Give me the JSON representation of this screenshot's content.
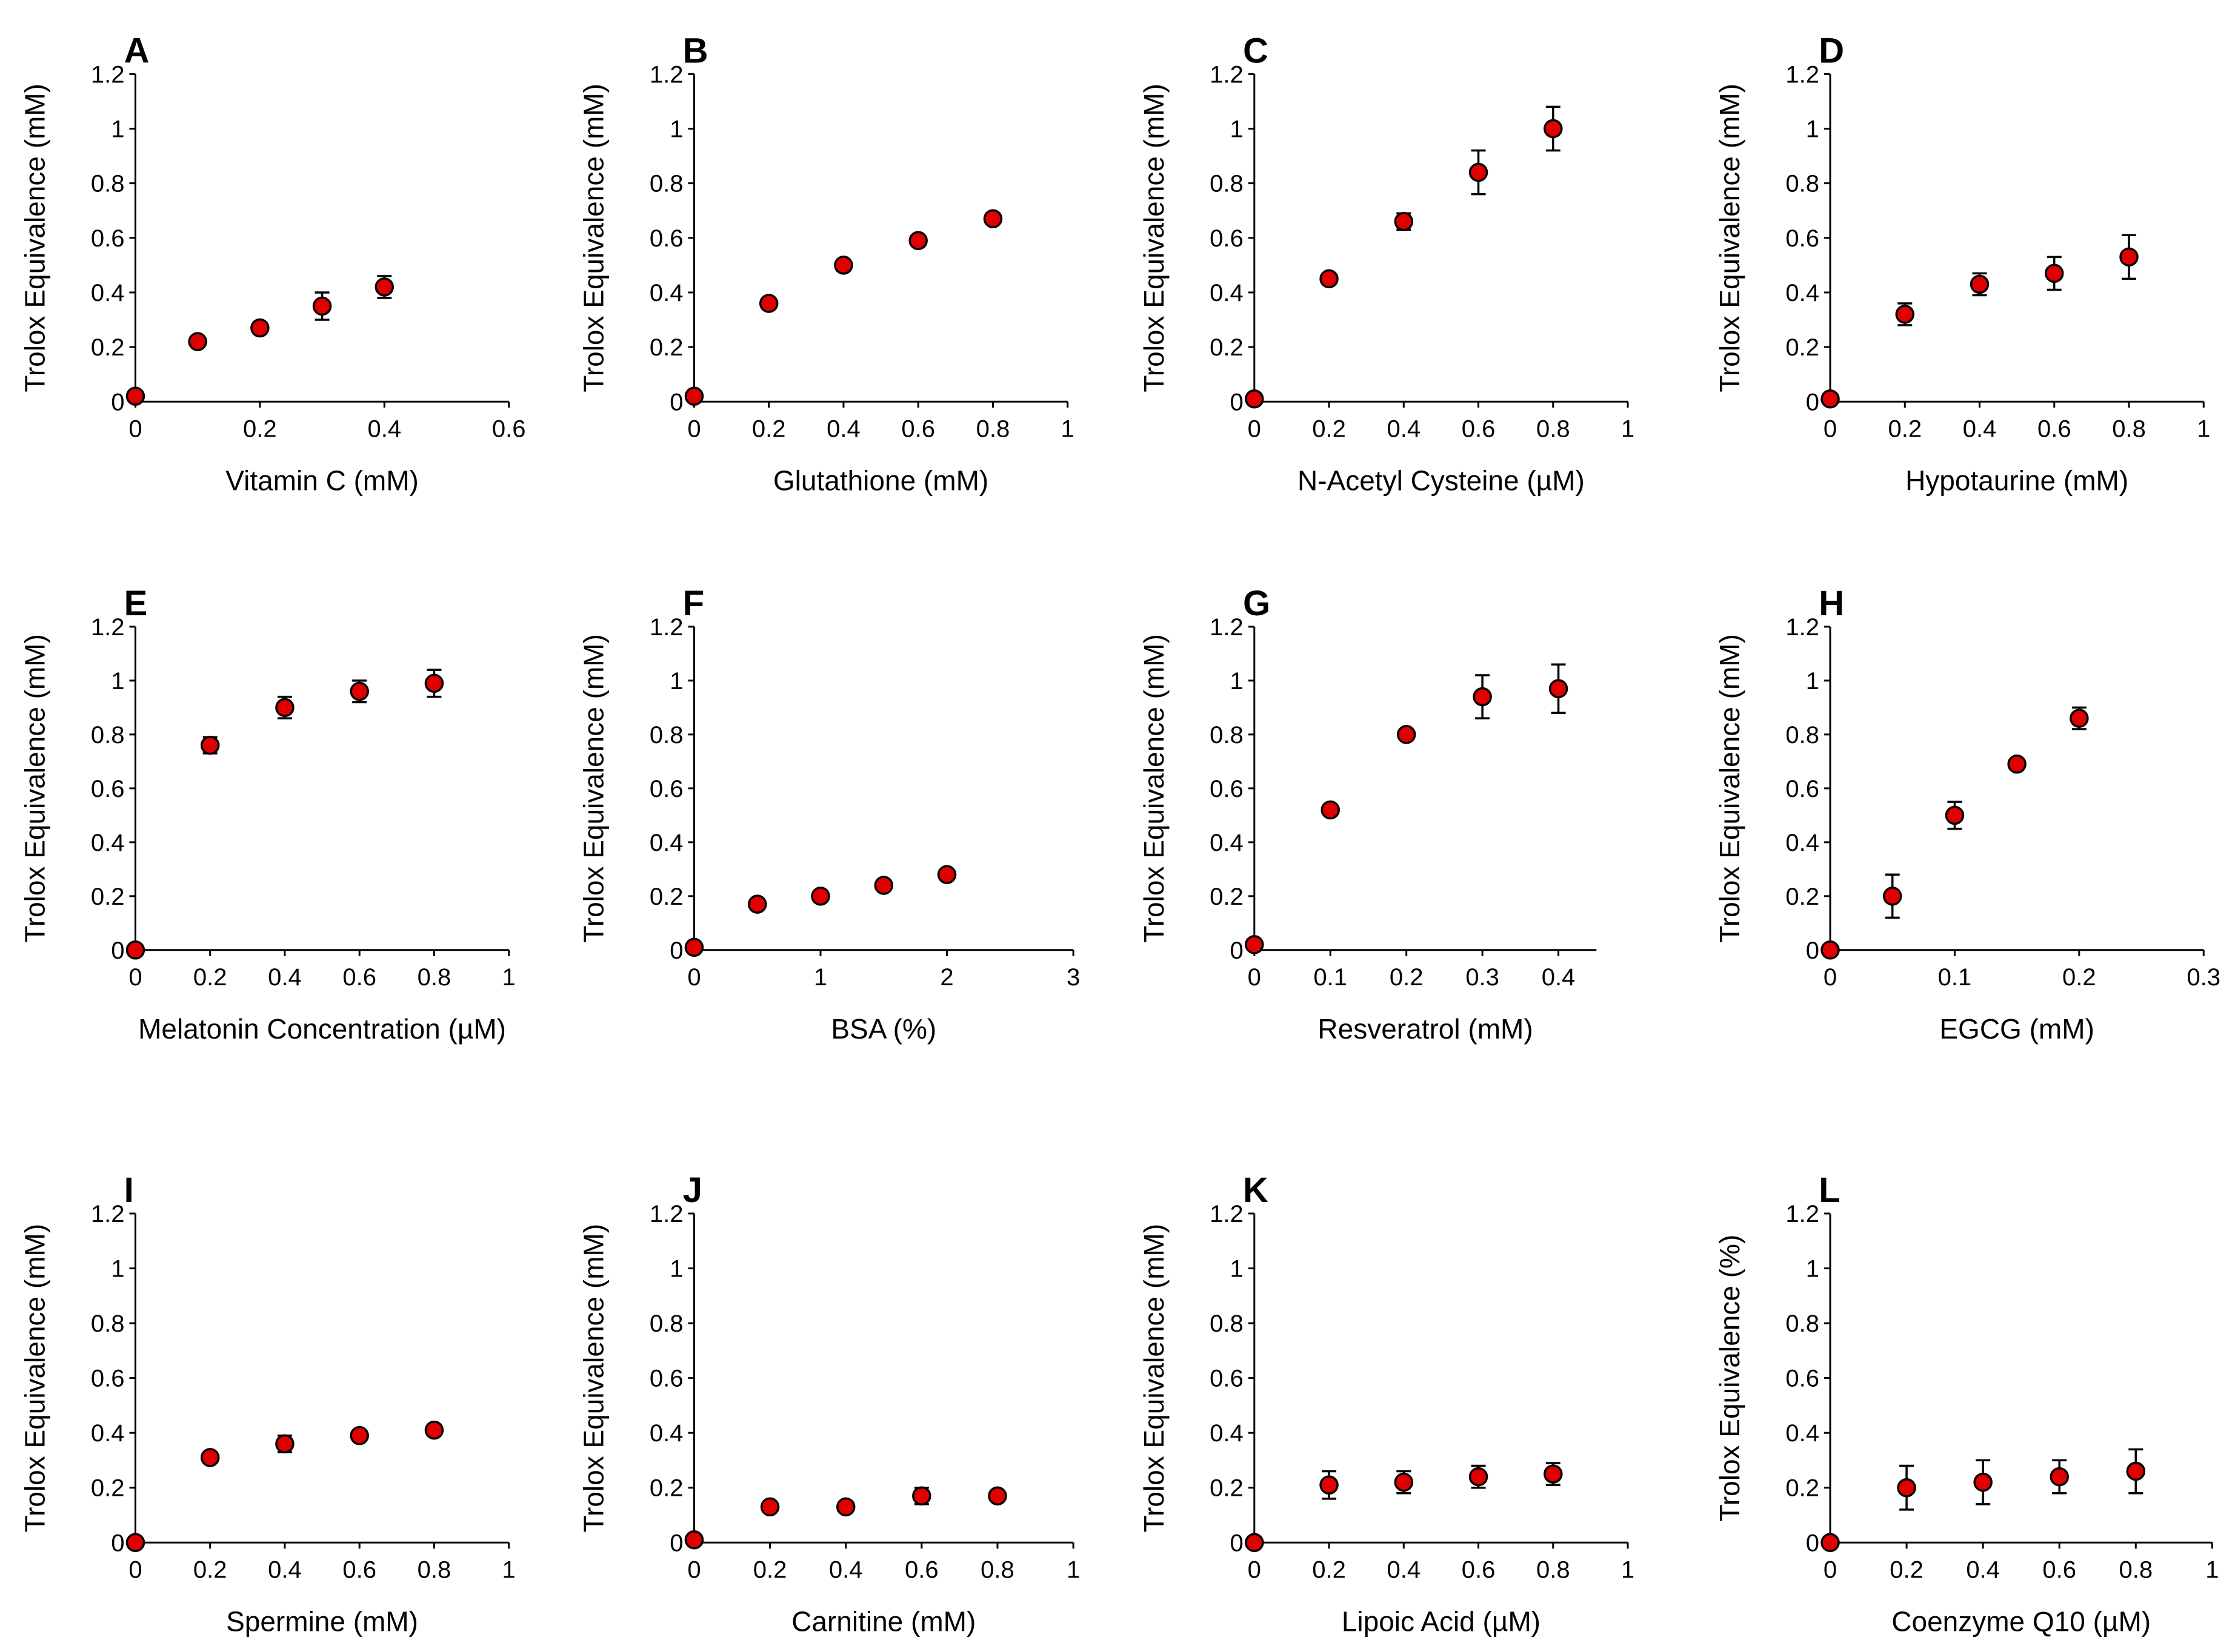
{
  "figure": {
    "marker_color": "#e00000",
    "marker_edge_color": "#000000",
    "axis_color": "#000000",
    "background": "#ffffff"
  },
  "chart_data": [
    {
      "panel": "A",
      "type": "scatter",
      "xlabel": "Vitamin C (mM)",
      "ylabel": "Trolox Equivalence (mM)",
      "xlim": [
        0,
        0.6
      ],
      "ylim": [
        0,
        1.2
      ],
      "x_ticks": [
        "0",
        "0.2",
        "0.4",
        "0.6"
      ],
      "y_ticks": [
        "0",
        "0.2",
        "0.4",
        "0.6",
        "0.8",
        "1",
        "1.2"
      ],
      "x": [
        0,
        0.1,
        0.2,
        0.3,
        0.4
      ],
      "y": [
        0.02,
        0.22,
        0.27,
        0.35,
        0.42
      ],
      "err": [
        0,
        0,
        0,
        0.05,
        0.04
      ]
    },
    {
      "panel": "B",
      "type": "scatter",
      "xlabel": "Glutathione (mM)",
      "ylabel": "Trolox Equivalence (mM)",
      "xlim": [
        0,
        1
      ],
      "ylim": [
        0,
        1.2
      ],
      "x_ticks": [
        "0",
        "0.2",
        "0.4",
        "0.6",
        "0.8",
        "1"
      ],
      "y_ticks": [
        "0",
        "0.2",
        "0.4",
        "0.6",
        "0.8",
        "1",
        "1.2"
      ],
      "x": [
        0,
        0.2,
        0.4,
        0.6,
        0.8
      ],
      "y": [
        0.02,
        0.36,
        0.5,
        0.59,
        0.67
      ],
      "err": [
        0,
        0.02,
        0.02,
        0.02,
        0.02
      ]
    },
    {
      "panel": "C",
      "type": "scatter",
      "xlabel": "N-Acetyl Cysteine (µM)",
      "ylabel": "Trolox Equivalence (mM)",
      "xlim": [
        0,
        1
      ],
      "ylim": [
        0,
        1.2
      ],
      "x_ticks": [
        "0",
        "0.2",
        "0.4",
        "0.6",
        "0.8",
        "1"
      ],
      "y_ticks": [
        "0",
        "0.2",
        "0.4",
        "0.6",
        "0.8",
        "1",
        "1.2"
      ],
      "x": [
        0,
        0.2,
        0.4,
        0.6,
        0.8
      ],
      "y": [
        0.01,
        0.45,
        0.66,
        0.84,
        1.0
      ],
      "err": [
        0,
        0,
        0.03,
        0.08,
        0.08
      ]
    },
    {
      "panel": "D",
      "type": "scatter",
      "xlabel": "Hypotaurine (mM)",
      "ylabel": "Trolox Equivalence (mM)",
      "xlim": [
        0,
        1
      ],
      "ylim": [
        0,
        1.2
      ],
      "x_ticks": [
        "0",
        "0.2",
        "0.4",
        "0.6",
        "0.8",
        "1"
      ],
      "y_ticks": [
        "0",
        "0.2",
        "0.4",
        "0.6",
        "0.8",
        "1",
        "1.2"
      ],
      "x": [
        0,
        0.2,
        0.4,
        0.6,
        0.8
      ],
      "y": [
        0.01,
        0.32,
        0.43,
        0.47,
        0.53
      ],
      "err": [
        0,
        0.04,
        0.04,
        0.06,
        0.08
      ]
    },
    {
      "panel": "E",
      "type": "scatter",
      "xlabel": "Melatonin Concentration (µM)",
      "ylabel": "Trolox Equivalence (mM)",
      "xlim": [
        0,
        1
      ],
      "ylim": [
        0,
        1.2
      ],
      "x_ticks": [
        "0",
        "0.2",
        "0.4",
        "0.6",
        "0.8",
        "1"
      ],
      "y_ticks": [
        "0",
        "0.2",
        "0.4",
        "0.6",
        "0.8",
        "1",
        "1.2"
      ],
      "x": [
        0,
        0.2,
        0.4,
        0.6,
        0.8
      ],
      "y": [
        0,
        0.76,
        0.9,
        0.96,
        0.99
      ],
      "err": [
        0,
        0.03,
        0.04,
        0.04,
        0.05
      ]
    },
    {
      "panel": "F",
      "type": "scatter",
      "xlabel": "BSA (%)",
      "ylabel": "Trolox Equivalence (mM)",
      "xlim": [
        0,
        3
      ],
      "ylim": [
        0,
        1.2
      ],
      "x_ticks": [
        "0",
        "1",
        "2",
        "3"
      ],
      "y_ticks": [
        "0",
        "0.2",
        "0.4",
        "0.6",
        "0.8",
        "1",
        "1.2"
      ],
      "x": [
        0,
        0.5,
        1,
        1.5,
        2
      ],
      "y": [
        0.01,
        0.17,
        0.2,
        0.24,
        0.28
      ],
      "err": [
        0,
        0.01,
        0.02,
        0.01,
        0.01
      ]
    },
    {
      "panel": "G",
      "type": "scatter",
      "xlabel": "Resveratrol (mM)",
      "ylabel": "Trolox Equivalence (mM)",
      "xlim": [
        0,
        0.45
      ],
      "ylim": [
        0,
        1.2
      ],
      "x_ticks": [
        "0",
        "0.1",
        "0.2",
        "0.3",
        "0.4"
      ],
      "y_ticks": [
        "0",
        "0.2",
        "0.4",
        "0.6",
        "0.8",
        "1",
        "1.2"
      ],
      "x": [
        0,
        0.1,
        0.2,
        0.3,
        0.4
      ],
      "y": [
        0.02,
        0.52,
        0.8,
        0.94,
        0.97
      ],
      "err": [
        0,
        0.02,
        0,
        0.08,
        0.09
      ]
    },
    {
      "panel": "H",
      "type": "scatter",
      "xlabel": "EGCG (mM)",
      "ylabel": "Trolox Equivalence (mM)",
      "xlim": [
        0,
        0.3
      ],
      "ylim": [
        0,
        1.2
      ],
      "x_ticks": [
        "0",
        "0.1",
        "0.2",
        "0.3"
      ],
      "y_ticks": [
        "0",
        "0.2",
        "0.4",
        "0.6",
        "0.8",
        "1",
        "1.2"
      ],
      "x": [
        0,
        0.05,
        0.1,
        0.15,
        0.2
      ],
      "y": [
        0,
        0.2,
        0.5,
        0.69,
        0.86
      ],
      "err": [
        0,
        0.08,
        0.05,
        0,
        0.04
      ]
    },
    {
      "panel": "I",
      "type": "scatter",
      "xlabel": "Spermine (mM)",
      "ylabel": "Trolox Equivalence (mM)",
      "xlim": [
        0,
        1
      ],
      "ylim": [
        0,
        1.2
      ],
      "x_ticks": [
        "0",
        "0.2",
        "0.4",
        "0.6",
        "0.8",
        "1"
      ],
      "y_ticks": [
        "0",
        "0.2",
        "0.4",
        "0.6",
        "0.8",
        "1",
        "1.2"
      ],
      "x": [
        0,
        0.2,
        0.4,
        0.6,
        0.8
      ],
      "y": [
        0,
        0.31,
        0.36,
        0.39,
        0.41
      ],
      "err": [
        0,
        0.02,
        0.03,
        0.01,
        0.02
      ]
    },
    {
      "panel": "J",
      "type": "scatter",
      "xlabel": "Carnitine (mM)",
      "ylabel": "Trolox Equivalence (mM)",
      "xlim": [
        0,
        1
      ],
      "ylim": [
        0,
        1.2
      ],
      "x_ticks": [
        "0",
        "0.2",
        "0.4",
        "0.6",
        "0.8",
        "1"
      ],
      "y_ticks": [
        "0",
        "0.2",
        "0.4",
        "0.6",
        "0.8",
        "1",
        "1.2"
      ],
      "x": [
        0,
        0.2,
        0.4,
        0.6,
        0.8
      ],
      "y": [
        0.01,
        0.13,
        0.13,
        0.17,
        0.17
      ],
      "err": [
        0,
        0.01,
        0.01,
        0.03,
        0.01
      ]
    },
    {
      "panel": "K",
      "type": "scatter",
      "xlabel": "Lipoic Acid (µM)",
      "ylabel": "Trolox Equivalence (mM)",
      "xlim": [
        0,
        1
      ],
      "ylim": [
        0,
        1.2
      ],
      "x_ticks": [
        "0",
        "0.2",
        "0.4",
        "0.6",
        "0.8",
        "1"
      ],
      "y_ticks": [
        "0",
        "0.2",
        "0.4",
        "0.6",
        "0.8",
        "1",
        "1.2"
      ],
      "x": [
        0,
        0.2,
        0.4,
        0.6,
        0.8
      ],
      "y": [
        0,
        0.21,
        0.22,
        0.24,
        0.25
      ],
      "err": [
        0,
        0.05,
        0.04,
        0.04,
        0.04
      ]
    },
    {
      "panel": "L",
      "type": "scatter",
      "xlabel": "Coenzyme Q10 (µM)",
      "ylabel": "Trolox Equivalence (%)",
      "xlim": [
        0,
        1
      ],
      "ylim": [
        0,
        1.2
      ],
      "x_ticks": [
        "0",
        "0.2",
        "0.4",
        "0.6",
        "0.8",
        "1"
      ],
      "y_ticks": [
        "0",
        "0.2",
        "0.4",
        "0.6",
        "0.8",
        "1",
        "1.2"
      ],
      "x": [
        0,
        0.2,
        0.4,
        0.6,
        0.8
      ],
      "y": [
        0,
        0.2,
        0.22,
        0.24,
        0.26
      ],
      "err": [
        0,
        0.08,
        0.08,
        0.06,
        0.08
      ]
    }
  ]
}
